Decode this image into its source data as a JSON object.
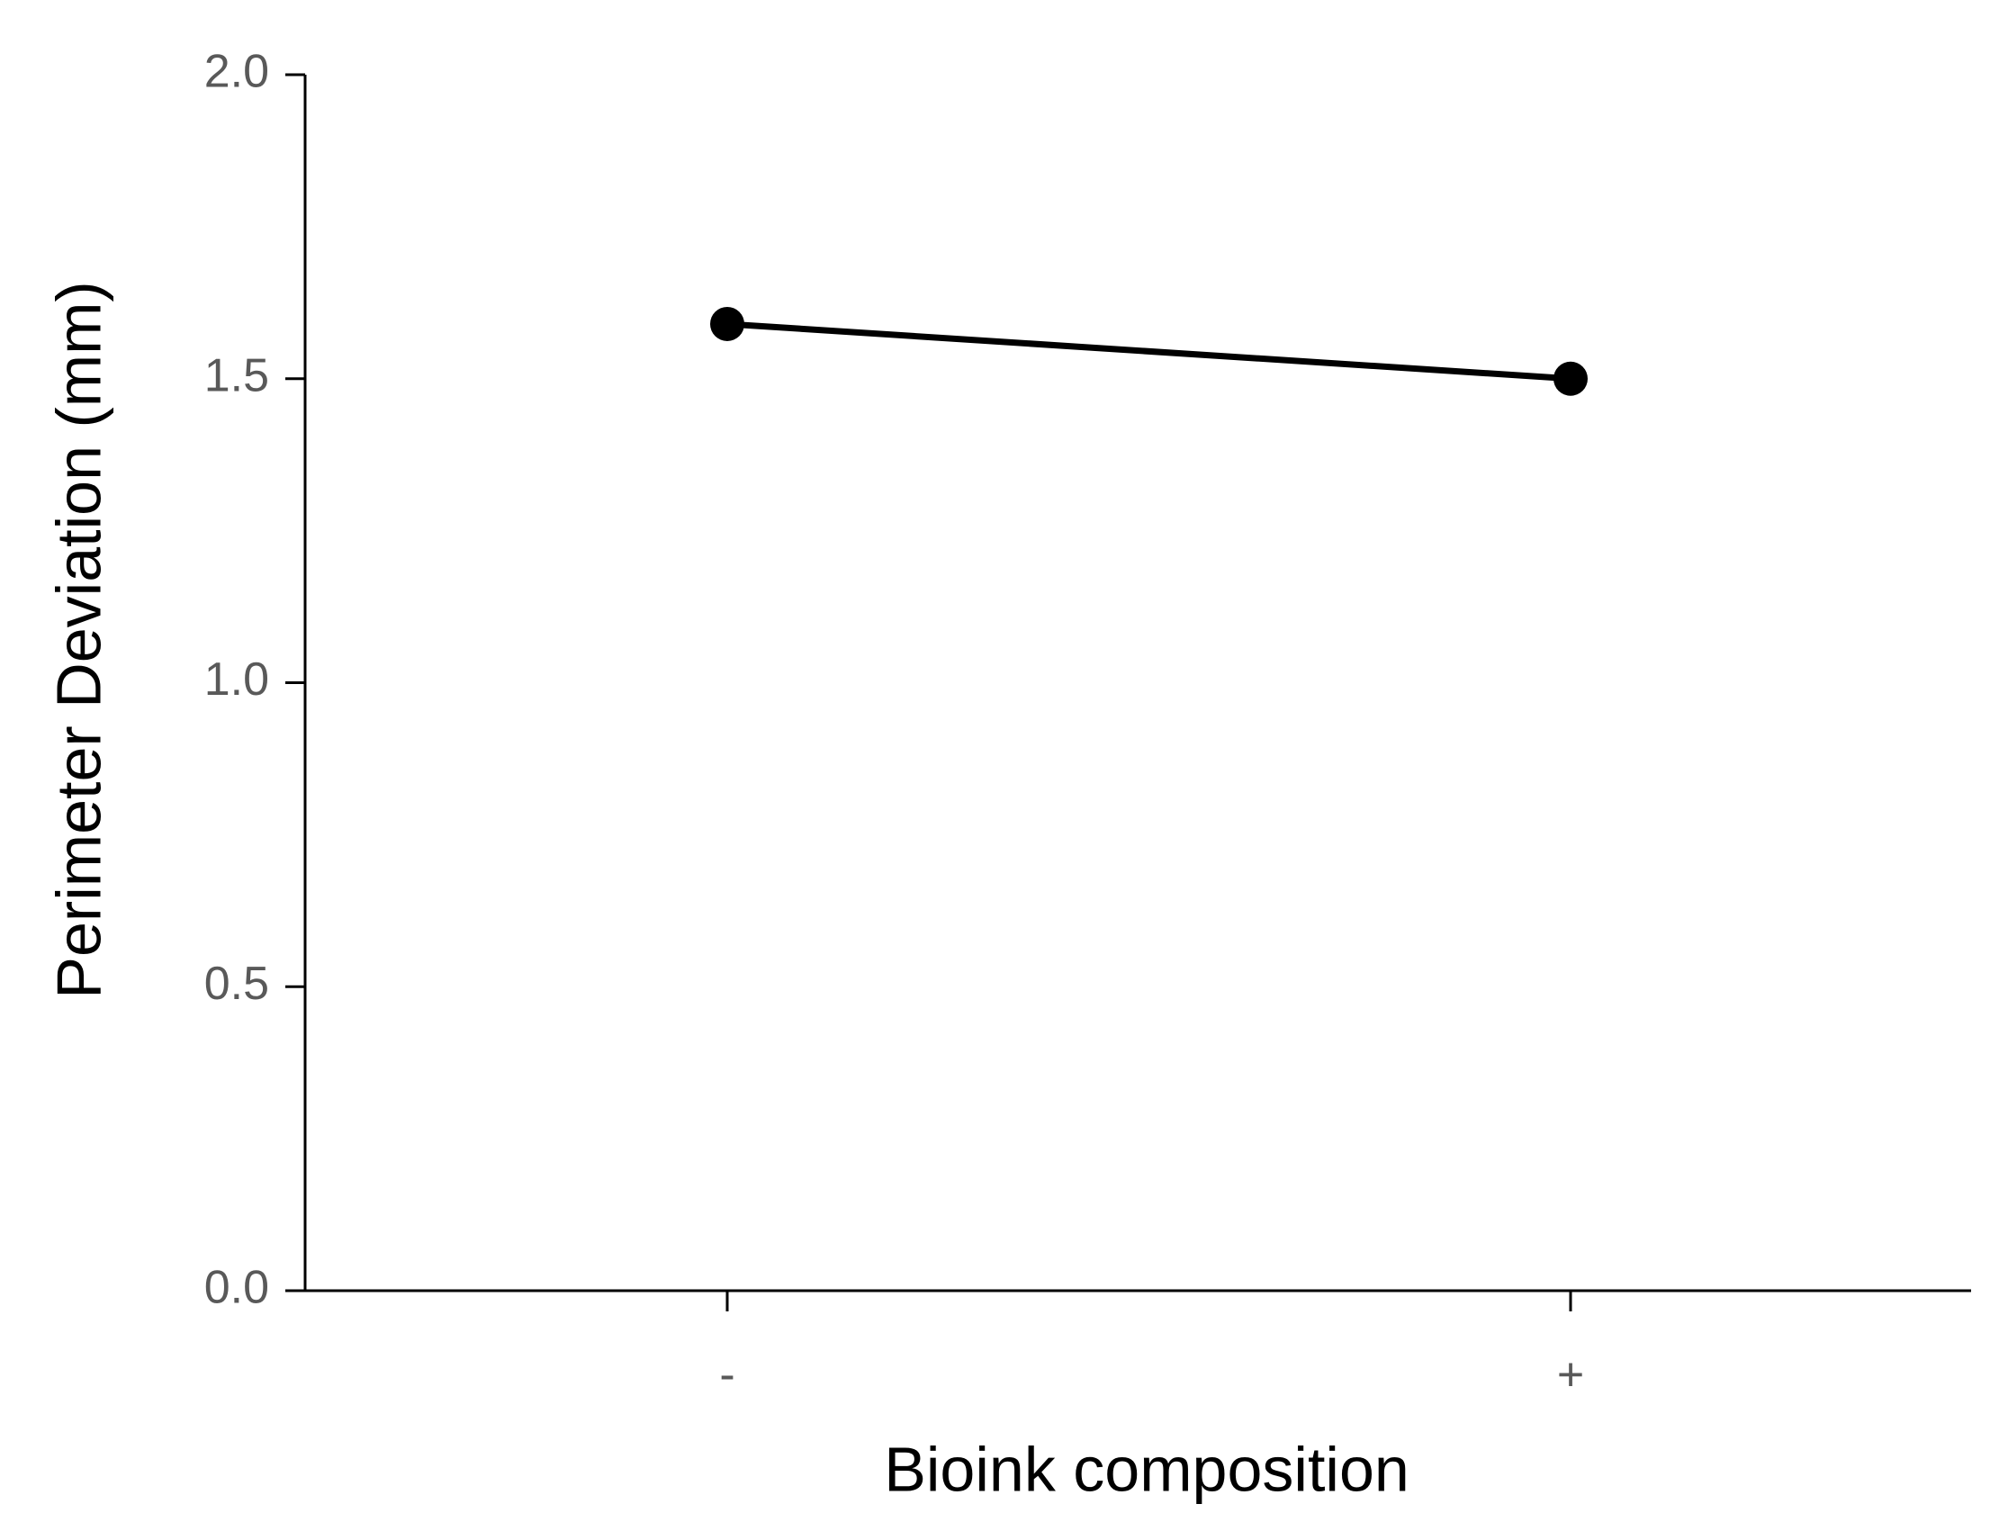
{
  "chart_data": {
    "type": "line",
    "x_label": "Bioink composition",
    "y_label": "Perimeter Deviation (mm)",
    "categories": [
      "-",
      "+"
    ],
    "series": [
      {
        "name": null,
        "color": "#000000",
        "values": [
          1.59,
          1.5
        ]
      }
    ],
    "ylim": [
      0,
      2
    ],
    "yticks": [
      {
        "value": 0,
        "label": "0.0"
      },
      {
        "value": 0.5,
        "label": "0.5"
      },
      {
        "value": 1,
        "label": "1.0"
      },
      {
        "value": 1.5,
        "label": "1.5"
      },
      {
        "value": 2,
        "label": "2.0"
      }
    ],
    "grid": false
  }
}
